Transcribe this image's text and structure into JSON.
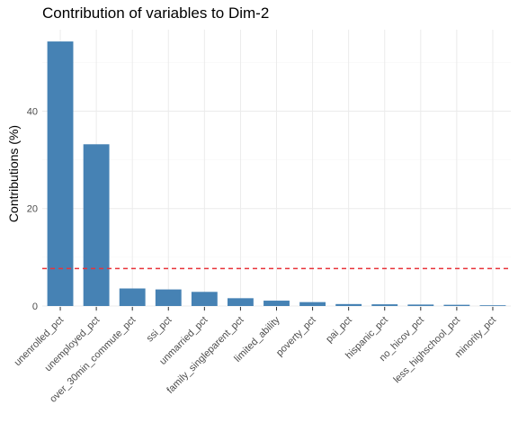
{
  "chart_data": {
    "type": "bar",
    "title": "Contribution of variables to Dim-2",
    "xlabel": "",
    "ylabel": "Contributions (%)",
    "categories": [
      "unenrolled_pct",
      "unemployed_pct",
      "over_30min_commute_pct",
      "ssi_pct",
      "unmarried_pct",
      "family_singleparent_pct",
      "limited_ability",
      "poverty_pct",
      "pai_pct",
      "hispanic_pct",
      "no_hicov_pct",
      "less_highschool_pct",
      "minority_pct"
    ],
    "values": [
      54.3,
      33.2,
      3.6,
      3.4,
      2.9,
      1.6,
      1.1,
      0.8,
      0.4,
      0.35,
      0.3,
      0.25,
      0.15
    ],
    "reference_line": 7.69,
    "ylim": [
      0,
      54.5
    ],
    "yticks": [
      0,
      20,
      40
    ],
    "grid": true,
    "colors": {
      "bar": "#4682b4",
      "reference": "#e8333a",
      "grid_major": "#ebebeb",
      "grid_minor": "#f5f5f5"
    }
  }
}
